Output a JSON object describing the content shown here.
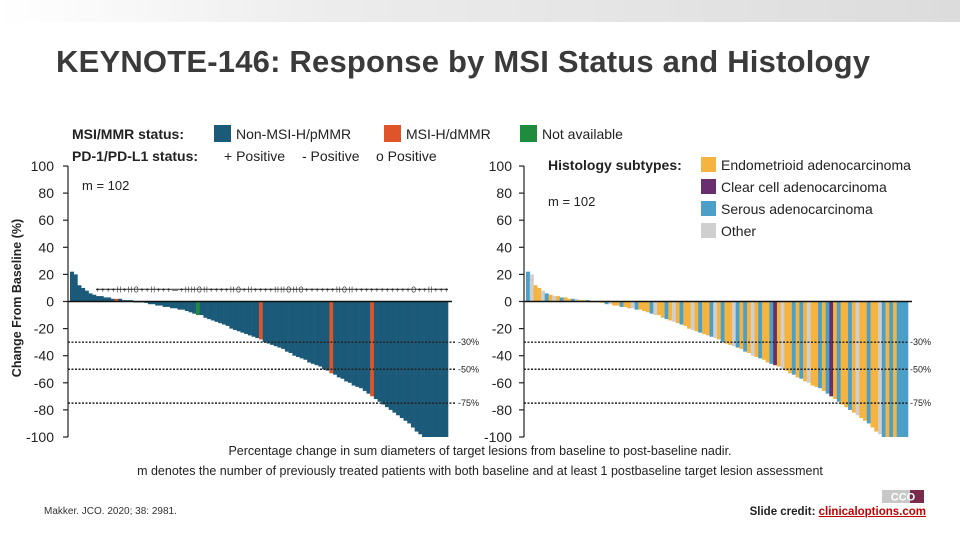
{
  "slide": {
    "title": "KEYNOTE-146: Response by MSI Status and Histology",
    "caption_line1": "Percentage change in sum diameters of target lesions from baseline to post-baseline nadir.",
    "caption_line2": "m denotes the number of previously treated patients with both baseline and at least 1 postbaseline target lesion assessment",
    "reference": "Makker. JCO. 2020; 38: 2981.",
    "credit_label": "Slide credit:",
    "credit_link": "clinicaloptions.com",
    "logo_text": "CCO"
  },
  "colors": {
    "non_msi": "#1b5a78",
    "msi_h": "#e0542a",
    "not_available": "#1e8c3c",
    "endometrioid": "#f4b43f",
    "clear_cell": "#6a2d6e",
    "serous": "#4b9fc8",
    "other": "#cfcfcf"
  },
  "chart_data": [
    {
      "type": "bar",
      "ylabel": "Change From Baseline (%)",
      "ylim": [
        -100,
        100
      ],
      "yticks": [
        "100",
        "80",
        "60",
        "40",
        "20",
        "0",
        "-20",
        "-40",
        "-60",
        "-80",
        "-100"
      ],
      "annotation_m": "m = 102",
      "reference_lines": [
        {
          "value": -30,
          "label": "-30%"
        },
        {
          "value": -50,
          "label": "-50%"
        },
        {
          "value": -75,
          "label": "-75%"
        }
      ],
      "legend": {
        "msi_title": "MSI/MMR status:",
        "msi_items": [
          "Non-MSI-H/pMMR",
          "MSI-H/dMMR",
          "Not available"
        ],
        "pdl1_title": "PD-1/PD-L1 status:",
        "pdl1_items": [
          "+ Positive",
          "- Positive",
          "o Positive"
        ]
      },
      "series": [
        {
          "name": "Non-MSI-H/pMMR",
          "color_key": "non_msi"
        },
        {
          "name": "MSI-H/dMMR",
          "color_key": "msi_h"
        },
        {
          "name": "Not available",
          "color_key": "not_available"
        }
      ],
      "values": [
        22,
        20,
        12,
        10,
        8,
        6,
        5,
        4,
        4,
        3,
        3,
        2,
        2,
        2,
        1,
        1,
        1,
        0,
        0,
        0,
        -1,
        -2,
        -2,
        -3,
        -3,
        -4,
        -4,
        -5,
        -5,
        -6,
        -6,
        -7,
        -8,
        -9,
        -10,
        -10,
        -12,
        -13,
        -14,
        -15,
        -16,
        -17,
        -18,
        -20,
        -21,
        -22,
        -23,
        -24,
        -25,
        -26,
        -27,
        -28,
        -30,
        -31,
        -32,
        -33,
        -34,
        -35,
        -37,
        -38,
        -40,
        -41,
        -42,
        -43,
        -45,
        -46,
        -47,
        -48,
        -50,
        -51,
        -53,
        -54,
        -56,
        -57,
        -59,
        -60,
        -62,
        -63,
        -64,
        -66,
        -68,
        -70,
        -72,
        -74,
        -76,
        -78,
        -80,
        -82,
        -84,
        -86,
        -88,
        -90,
        -93,
        -96,
        -98,
        -100,
        -100,
        -100,
        -100,
        -100,
        -100,
        -100
      ],
      "categories_color": [
        "non_msi",
        "non_msi",
        "non_msi",
        "non_msi",
        "non_msi",
        "non_msi",
        "non_msi",
        "non_msi",
        "non_msi",
        "non_msi",
        "non_msi",
        "non_msi",
        "msi_h",
        "non_msi",
        "non_msi",
        "non_msi",
        "non_msi",
        "non_msi",
        "non_msi",
        "non_msi",
        "non_msi",
        "non_msi",
        "non_msi",
        "non_msi",
        "non_msi",
        "non_msi",
        "non_msi",
        "non_msi",
        "non_msi",
        "non_msi",
        "non_msi",
        "non_msi",
        "non_msi",
        "non_msi",
        "not_available",
        "non_msi",
        "non_msi",
        "non_msi",
        "non_msi",
        "non_msi",
        "non_msi",
        "non_msi",
        "non_msi",
        "non_msi",
        "non_msi",
        "non_msi",
        "non_msi",
        "non_msi",
        "non_msi",
        "non_msi",
        "non_msi",
        "msi_h",
        "non_msi",
        "non_msi",
        "non_msi",
        "non_msi",
        "non_msi",
        "non_msi",
        "non_msi",
        "non_msi",
        "non_msi",
        "non_msi",
        "non_msi",
        "non_msi",
        "non_msi",
        "non_msi",
        "non_msi",
        "non_msi",
        "non_msi",
        "non_msi",
        "msi_h",
        "non_msi",
        "non_msi",
        "non_msi",
        "non_msi",
        "non_msi",
        "non_msi",
        "non_msi",
        "non_msi",
        "non_msi",
        "non_msi",
        "msi_h",
        "non_msi",
        "non_msi",
        "non_msi",
        "non_msi",
        "non_msi",
        "non_msi",
        "non_msi",
        "non_msi",
        "non_msi",
        "non_msi",
        "non_msi",
        "non_msi",
        "non_msi",
        "non_msi",
        "non_msi",
        "non_msi",
        "non_msi",
        "non_msi",
        "non_msi",
        "non_msi"
      ],
      "pdl1_markers": "+ + + + H + H O + + H + + + — + H H O H + + + + H O + H + + + + H H O H O + + + + + + H O H + + + + + + + + + + + O + + H + + +"
    },
    {
      "type": "bar",
      "ylim": [
        -100,
        100
      ],
      "yticks": [
        "100",
        "80",
        "60",
        "40",
        "20",
        "0",
        "-20",
        "-40",
        "-60",
        "-80",
        "-100"
      ],
      "annotation_m": "m = 102",
      "reference_lines": [
        {
          "value": -30,
          "label": "-30%"
        },
        {
          "value": -50,
          "label": "-50%"
        },
        {
          "value": -75,
          "label": "-75%"
        }
      ],
      "legend": {
        "title": "Histology subtypes:",
        "items": [
          "Endometrioid adenocarcinoma",
          "Clear cell adenocarcinoma",
          "Serous adenocarcinoma",
          "Other"
        ]
      },
      "series": [
        {
          "name": "Endometrioid adenocarcinoma",
          "color_key": "endometrioid"
        },
        {
          "name": "Clear cell adenocarcinoma",
          "color_key": "clear_cell"
        },
        {
          "name": "Serous adenocarcinoma",
          "color_key": "serous"
        },
        {
          "name": "Other",
          "color_key": "other"
        }
      ],
      "values": [
        22,
        20,
        12,
        10,
        8,
        6,
        5,
        4,
        4,
        3,
        3,
        2,
        2,
        2,
        1,
        1,
        1,
        0,
        0,
        0,
        -1,
        -2,
        -2,
        -3,
        -3,
        -4,
        -4,
        -5,
        -5,
        -6,
        -6,
        -7,
        -8,
        -9,
        -10,
        -10,
        -12,
        -13,
        -14,
        -15,
        -16,
        -17,
        -18,
        -20,
        -21,
        -22,
        -23,
        -24,
        -25,
        -26,
        -27,
        -28,
        -30,
        -31,
        -32,
        -33,
        -34,
        -35,
        -37,
        -38,
        -40,
        -41,
        -42,
        -43,
        -45,
        -46,
        -47,
        -48,
        -50,
        -51,
        -53,
        -54,
        -56,
        -57,
        -59,
        -60,
        -62,
        -63,
        -64,
        -66,
        -68,
        -70,
        -72,
        -74,
        -76,
        -78,
        -80,
        -82,
        -84,
        -86,
        -88,
        -90,
        -93,
        -96,
        -98,
        -100,
        -100,
        -100,
        -100,
        -100,
        -100,
        -100
      ],
      "categories_color": [
        "serous",
        "other",
        "endometrioid",
        "endometrioid",
        "other",
        "serous",
        "endometrioid",
        "other",
        "endometrioid",
        "serous",
        "endometrioid",
        "endometrioid",
        "serous",
        "other",
        "endometrioid",
        "endometrioid",
        "serous",
        "endometrioid",
        "other",
        "endometrioid",
        "endometrioid",
        "serous",
        "other",
        "endometrioid",
        "endometrioid",
        "serous",
        "endometrioid",
        "endometrioid",
        "other",
        "serous",
        "endometrioid",
        "endometrioid",
        "endometrioid",
        "serous",
        "other",
        "endometrioid",
        "endometrioid",
        "serous",
        "endometrioid",
        "other",
        "endometrioid",
        "serous",
        "endometrioid",
        "endometrioid",
        "other",
        "endometrioid",
        "serous",
        "endometrioid",
        "endometrioid",
        "serous",
        "other",
        "endometrioid",
        "serous",
        "endometrioid",
        "endometrioid",
        "other",
        "serous",
        "endometrioid",
        "serous",
        "endometrioid",
        "other",
        "endometrioid",
        "serous",
        "endometrioid",
        "endometrioid",
        "serous",
        "clear_cell",
        "endometrioid",
        "other",
        "endometrioid",
        "endometrioid",
        "serous",
        "endometrioid",
        "serous",
        "endometrioid",
        "other",
        "endometrioid",
        "endometrioid",
        "serous",
        "endometrioid",
        "serous",
        "clear_cell",
        "endometrioid",
        "serous",
        "endometrioid",
        "endometrioid",
        "serous",
        "endometrioid",
        "other",
        "endometrioid",
        "endometrioid",
        "serous",
        "endometrioid",
        "endometrioid",
        "other",
        "serous",
        "endometrioid",
        "serous",
        "endometrioid",
        "serous",
        "serous",
        "serous"
      ]
    }
  ]
}
